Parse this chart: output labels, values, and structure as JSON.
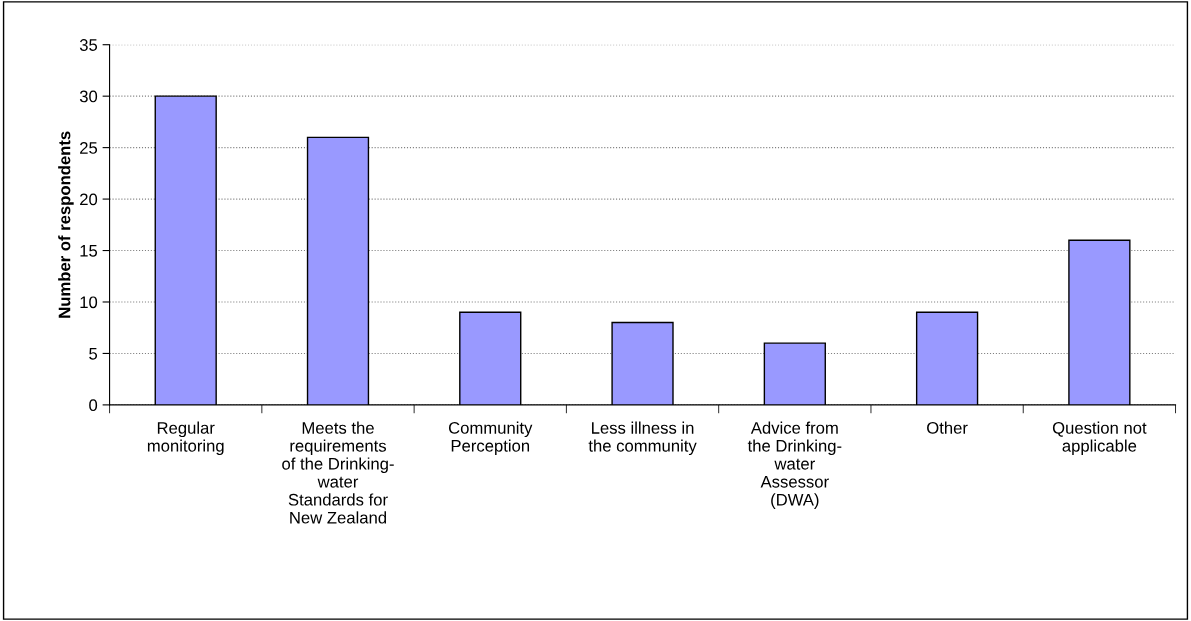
{
  "chart_data": {
    "type": "bar",
    "ylabel": "Number of respondents",
    "categories": [
      "Regular\nmonitoring",
      "Meets the\nrequirements\nof the Drinking-\nwater\nStandards for\nNew Zealand",
      "Community\nPerception",
      "Less illness in\nthe community",
      "Advice from\nthe Drinking-\nwater\nAssessor\n(DWA)",
      "Other",
      "Question not\napplicable"
    ],
    "values": [
      30,
      26,
      9,
      8,
      6,
      9,
      16
    ],
    "color": "#9999ff",
    "ylim": [
      0,
      35
    ],
    "yticks": [
      0,
      5,
      10,
      15,
      20,
      25,
      30,
      35
    ],
    "grid": "y",
    "legend": false
  }
}
